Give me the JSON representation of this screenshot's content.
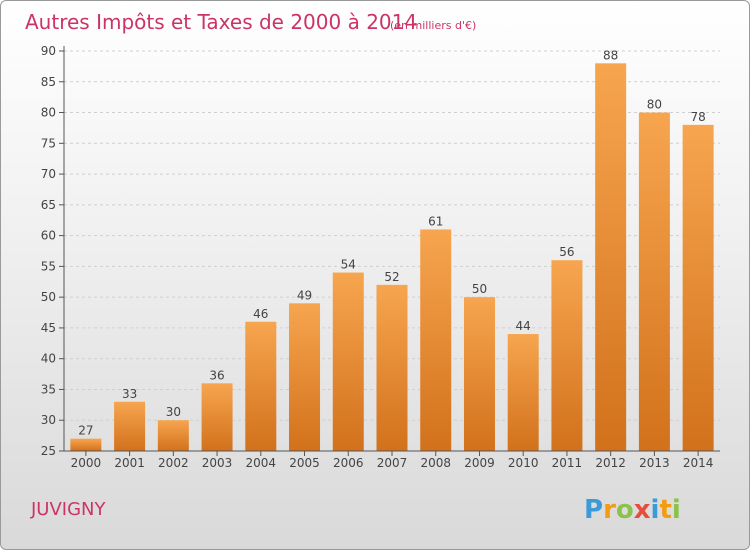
{
  "place": "JUVIGNY",
  "logo": {
    "letters": [
      "P",
      "r",
      "o",
      "x",
      "i",
      "t",
      "i"
    ],
    "colors": [
      "#3c9ad8",
      "#f39c12",
      "#8bc34a",
      "#e74c3c",
      "#3c9ad8",
      "#f39c12",
      "#8bc34a"
    ]
  },
  "chart_data": {
    "type": "bar",
    "title": "Autres Impôts et Taxes de 2000 à 2014",
    "subtitle": "(en milliers d'€)",
    "categories": [
      "2000",
      "2001",
      "2002",
      "2003",
      "2004",
      "2005",
      "2006",
      "2007",
      "2008",
      "2009",
      "2010",
      "2011",
      "2012",
      "2013",
      "2014"
    ],
    "values": [
      27,
      33,
      30,
      36,
      46,
      49,
      54,
      52,
      61,
      50,
      44,
      56,
      88,
      80,
      78
    ],
    "ylim": [
      25,
      90
    ],
    "yticks": [
      25,
      30,
      35,
      40,
      45,
      50,
      55,
      60,
      65,
      70,
      75,
      80,
      85,
      90
    ],
    "grid": "y-major-dashed",
    "bar_color_top": "#f7a54f",
    "bar_color_bottom": "#d2711c"
  }
}
